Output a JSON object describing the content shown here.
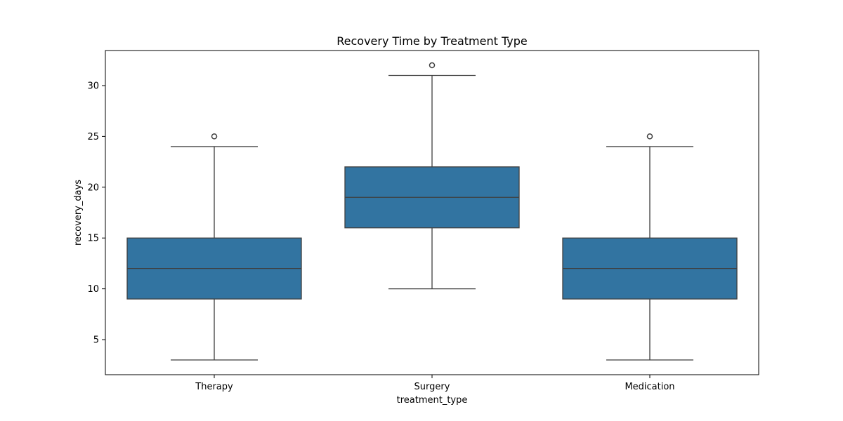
{
  "chart_data": {
    "type": "box",
    "title": "Recovery Time by Treatment Type",
    "xlabel": "treatment_type",
    "ylabel": "recovery_days",
    "categories": [
      "Therapy",
      "Surgery",
      "Medication"
    ],
    "boxes": [
      {
        "category": "Therapy",
        "whisker_low": 3,
        "q1": 9,
        "median": 12,
        "q3": 15,
        "whisker_high": 24,
        "outliers": [
          25
        ]
      },
      {
        "category": "Surgery",
        "whisker_low": 10,
        "q1": 16,
        "median": 19,
        "q3": 22,
        "whisker_high": 31,
        "outliers": [
          32
        ]
      },
      {
        "category": "Medication",
        "whisker_low": 3,
        "q1": 9,
        "median": 12,
        "q3": 15,
        "whisker_high": 24,
        "outliers": [
          25
        ]
      }
    ],
    "ylim": [
      1.55,
      33.45
    ],
    "yticks": [
      5,
      10,
      15,
      20,
      25,
      30
    ],
    "grid": false,
    "box_color": "#3274a1",
    "line_color": "#3f3f3f"
  }
}
